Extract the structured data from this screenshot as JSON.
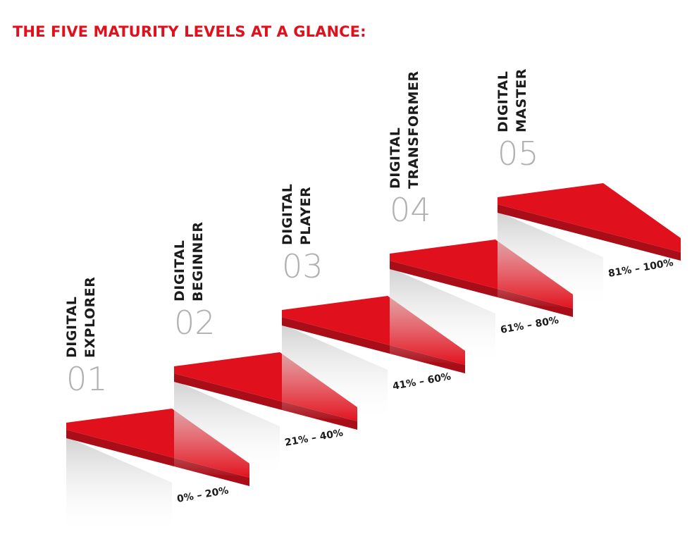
{
  "title": "THE FIVE MATURITY LEVELS AT A GLANCE:",
  "colors": {
    "title": "#e0101c",
    "step_top": "#e0101c",
    "step_side": "#a80d18",
    "number": "#b0b0b0",
    "label": "#1b1b1b",
    "shadow": "#d4d4d4"
  },
  "levels": [
    {
      "number": "01",
      "line1": "DIGITAL",
      "line2": "EXPLORER",
      "range": "0% – 20%"
    },
    {
      "number": "02",
      "line1": "DIGITAL",
      "line2": "BEGINNER",
      "range": "21% – 40%"
    },
    {
      "number": "03",
      "line1": "DIGITAL",
      "line2": "PLAYER",
      "range": "41% – 60%"
    },
    {
      "number": "04",
      "line1": "DIGITAL",
      "line2": "TRANSFORMER",
      "range": "61% – 80%"
    },
    {
      "number": "05",
      "line1": "DIGITAL",
      "line2": "MASTER",
      "range": "81% – 100%"
    }
  ]
}
